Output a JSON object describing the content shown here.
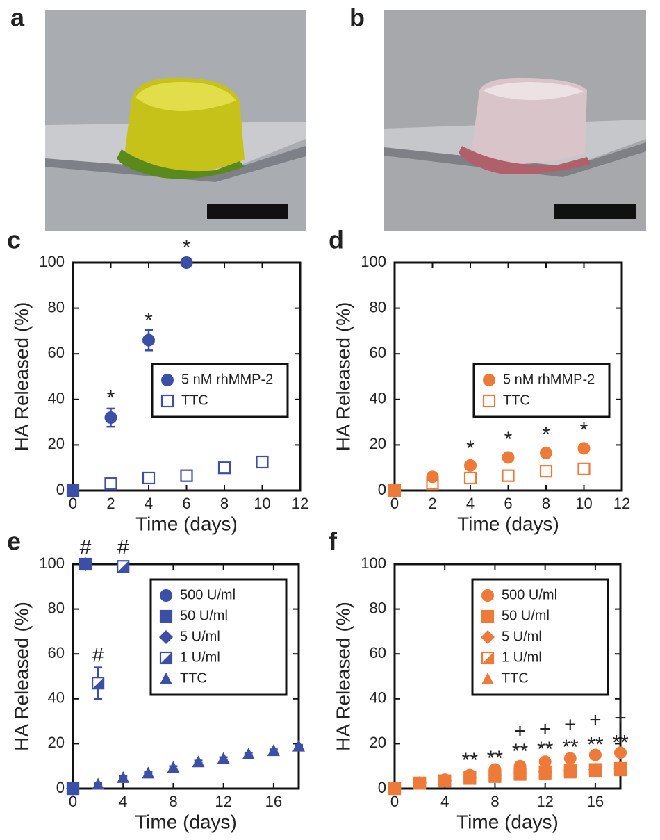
{
  "photos": [
    {
      "panel": "a"
    },
    {
      "panel": "b"
    }
  ],
  "chart_data": [
    {
      "type": "scatter",
      "panel": "c",
      "xlabel": "Time (days)",
      "ylabel": "HA Released (%)",
      "xlim": [
        0,
        12
      ],
      "xticks": [
        0,
        2,
        4,
        6,
        8,
        10,
        12
      ],
      "ylim": [
        0,
        100
      ],
      "yticks": [
        0,
        20,
        40,
        60,
        80,
        100
      ],
      "legend": "center right",
      "series": [
        {
          "name": "5 nM rhMMP-2",
          "color": "#3c4fa6",
          "marker": "circle",
          "x": [
            0,
            2,
            4,
            6
          ],
          "values": [
            0,
            32,
            66,
            100
          ],
          "errors": [
            0,
            4,
            4.5,
            0
          ]
        },
        {
          "name": "TTC",
          "color": "#3c4fa6",
          "marker": "square-open",
          "x": [
            0,
            2,
            4,
            6,
            8,
            10
          ],
          "values": [
            0,
            3,
            5.5,
            6.5,
            10,
            12.5
          ],
          "errors": [
            0,
            1,
            1,
            1,
            1,
            1
          ]
        }
      ],
      "annotations": [
        {
          "text": "*",
          "x": 2,
          "y": 40
        },
        {
          "text": "*",
          "x": 4,
          "y": 74
        },
        {
          "text": "*",
          "x": 6,
          "y": 106
        }
      ]
    },
    {
      "type": "scatter",
      "panel": "d",
      "xlabel": "Time (days)",
      "ylabel": "HA Released (%)",
      "xlim": [
        0,
        12
      ],
      "xticks": [
        0,
        2,
        4,
        6,
        8,
        10,
        12
      ],
      "ylim": [
        0,
        100
      ],
      "yticks": [
        0,
        20,
        40,
        60,
        80,
        100
      ],
      "legend": "center right",
      "series": [
        {
          "name": "5 nM rhMMP-2",
          "color": "#ee7a3a",
          "marker": "circle",
          "x": [
            0,
            2,
            4,
            6,
            8,
            10
          ],
          "values": [
            0,
            6,
            11,
            14.5,
            16.5,
            18.5
          ],
          "errors": [
            0,
            0.5,
            0.5,
            0.5,
            0.5,
            0.5
          ]
        },
        {
          "name": "TTC",
          "color": "#ee7a3a",
          "marker": "square-open",
          "x": [
            0,
            2,
            4,
            6,
            8,
            10
          ],
          "values": [
            0,
            3,
            5.5,
            6.5,
            8.5,
            9.5
          ],
          "errors": [
            0,
            1,
            1.5,
            1.5,
            1.5,
            1.5
          ]
        }
      ],
      "annotations": [
        {
          "text": "*",
          "x": 4,
          "y": 18
        },
        {
          "text": "*",
          "x": 6,
          "y": 22
        },
        {
          "text": "*",
          "x": 8,
          "y": 24
        },
        {
          "text": "*",
          "x": 10,
          "y": 26
        }
      ]
    },
    {
      "type": "scatter",
      "panel": "e",
      "xlabel": "Time (days)",
      "ylabel": "HA Released (%)",
      "xlim": [
        0,
        18
      ],
      "xticks": [
        0,
        4,
        8,
        12,
        16
      ],
      "ylim": [
        0,
        100
      ],
      "yticks": [
        0,
        20,
        40,
        60,
        80,
        100
      ],
      "legend": "upper right",
      "series": [
        {
          "name": "500 U/ml",
          "color": "#3c4fa6",
          "marker": "circle",
          "x": [
            0,
            1
          ],
          "values": [
            0,
            100
          ],
          "errors": [
            0,
            0
          ]
        },
        {
          "name": "50 U/ml",
          "color": "#3c4fa6",
          "marker": "square",
          "x": [
            0,
            1
          ],
          "values": [
            0,
            100
          ],
          "errors": [
            0,
            0
          ]
        },
        {
          "name": "5 U/ml",
          "color": "#3c4fa6",
          "marker": "diamond",
          "x": [
            0,
            1
          ],
          "values": [
            0,
            100
          ],
          "errors": [
            0,
            0
          ]
        },
        {
          "name": "1 U/ml",
          "color": "#3c4fa6",
          "marker": "half-square",
          "x": [
            0,
            2,
            4
          ],
          "values": [
            0,
            47,
            99
          ],
          "errors": [
            0,
            7,
            1.5
          ]
        },
        {
          "name": "TTC",
          "color": "#3c4fa6",
          "marker": "triangle",
          "x": [
            0,
            2,
            4,
            6,
            8,
            10,
            12,
            14,
            16,
            18
          ],
          "values": [
            0,
            2,
            5,
            7,
            9.5,
            12,
            13.5,
            15.5,
            17,
            19
          ],
          "errors": [
            0,
            0.5,
            0.5,
            0.5,
            0.5,
            0.5,
            0.5,
            0.5,
            0.5,
            0.5
          ]
        }
      ],
      "annotations": [
        {
          "text": "#",
          "x": 1,
          "y": 107
        },
        {
          "text": "#",
          "x": 4,
          "y": 107
        },
        {
          "text": "#",
          "x": 2,
          "y": 59
        }
      ]
    },
    {
      "type": "scatter",
      "panel": "f",
      "xlabel": "Time (days)",
      "ylabel": "HA Released (%)",
      "xlim": [
        0,
        18
      ],
      "xticks": [
        0,
        4,
        8,
        12,
        16
      ],
      "ylim": [
        0,
        100
      ],
      "yticks": [
        0,
        20,
        40,
        60,
        80,
        100
      ],
      "legend": "upper right",
      "series": [
        {
          "name": "500 U/ml",
          "color": "#ee7a3a",
          "marker": "circle",
          "x": [
            0,
            2,
            4,
            6,
            8,
            10,
            12,
            14,
            16,
            18
          ],
          "values": [
            0,
            2.5,
            4,
            6,
            8.5,
            10,
            12,
            13.5,
            15,
            16
          ],
          "errors": [
            0,
            0.5,
            0.5,
            0.5,
            0.5,
            0.5,
            0.5,
            0.5,
            0.5,
            0.5
          ]
        },
        {
          "name": "50 U/ml",
          "color": "#ee7a3a",
          "marker": "square",
          "x": [
            0,
            2,
            4,
            6,
            8,
            10,
            12,
            14,
            16,
            18
          ],
          "values": [
            0,
            2.5,
            3.5,
            5,
            6,
            6.5,
            7.5,
            8,
            8.5,
            9
          ],
          "errors": [
            0,
            0.5,
            0.5,
            0.5,
            0.5,
            0.5,
            0.5,
            0.5,
            0.5,
            0.5
          ]
        },
        {
          "name": "5 U/ml",
          "color": "#ee7a3a",
          "marker": "diamond",
          "x": [
            0,
            2,
            4,
            6,
            8,
            10,
            12,
            14,
            16,
            18
          ],
          "values": [
            0,
            2.5,
            3.5,
            5,
            6,
            7,
            7.5,
            8,
            8.5,
            9
          ],
          "errors": [
            0,
            0.5,
            0.5,
            0.5,
            0.5,
            0.5,
            0.5,
            0.5,
            0.5,
            0.5
          ]
        },
        {
          "name": "1 U/ml",
          "color": "#ee7a3a",
          "marker": "half-square",
          "x": [
            0,
            2,
            4,
            6,
            8,
            10,
            12,
            14,
            16,
            18
          ],
          "values": [
            0,
            2.5,
            3.5,
            4.5,
            5.5,
            6.5,
            7,
            7.5,
            8,
            8.5
          ],
          "errors": [
            0,
            0.5,
            0.5,
            0.5,
            0.5,
            0.5,
            0.5,
            0.5,
            0.5,
            0.5
          ]
        },
        {
          "name": "TTC",
          "color": "#ee7a3a",
          "marker": "triangle",
          "x": [
            0,
            2,
            4,
            6,
            8,
            10,
            12,
            14,
            16,
            18
          ],
          "values": [
            0,
            2,
            3,
            4.5,
            5,
            6,
            6.5,
            7,
            7.5,
            8
          ],
          "errors": [
            0,
            0.5,
            0.5,
            0.5,
            0.5,
            0.5,
            0.5,
            0.5,
            0.5,
            0.5
          ]
        }
      ],
      "annotations": [
        {
          "text": "**",
          "x": 6,
          "y": 12
        },
        {
          "text": "**",
          "x": 8,
          "y": 13
        },
        {
          "text": "**",
          "x": 10,
          "y": 16
        },
        {
          "text": "**",
          "x": 12,
          "y": 17
        },
        {
          "text": "**",
          "x": 14,
          "y": 18
        },
        {
          "text": "**",
          "x": 16,
          "y": 19
        },
        {
          "text": "**",
          "x": 18,
          "y": 20
        },
        {
          "text": "+",
          "x": 10,
          "y": 25
        },
        {
          "text": "+",
          "x": 12,
          "y": 26
        },
        {
          "text": "+",
          "x": 14,
          "y": 28
        },
        {
          "text": "+",
          "x": 16,
          "y": 30
        },
        {
          "text": "+",
          "x": 18,
          "y": 31
        }
      ]
    }
  ]
}
